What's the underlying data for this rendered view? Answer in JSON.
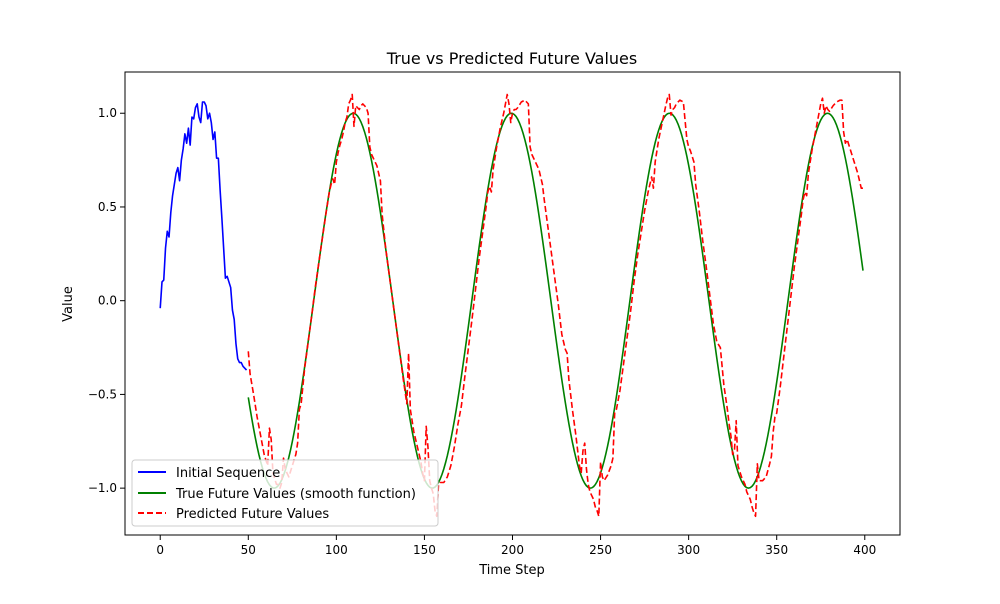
{
  "chart_data": {
    "type": "line",
    "title": "True vs Predicted Future Values",
    "xlabel": "Time Step",
    "ylabel": "Value",
    "xlim": [
      -20,
      420
    ],
    "ylim": [
      -1.25,
      1.22
    ],
    "x_ticks": [
      0,
      50,
      100,
      150,
      200,
      250,
      300,
      350,
      400
    ],
    "y_ticks": [
      1.0,
      0.5,
      0.0,
      -0.5,
      -1.0
    ],
    "x_tick_labels": [
      "0",
      "50",
      "100",
      "150",
      "200",
      "250",
      "300",
      "350",
      "400"
    ],
    "y_tick_labels": [
      "1.0",
      "0.5",
      "0.0",
      "−0.5",
      "−1.0"
    ],
    "grid": false,
    "legend_position": "lower-left",
    "series": [
      {
        "name": "Initial Sequence",
        "color": "#0000ff",
        "style": "solid",
        "points": [
          [
            0,
            -0.04
          ],
          [
            1,
            0.1
          ],
          [
            2,
            0.11
          ],
          [
            3,
            0.28
          ],
          [
            4,
            0.37
          ],
          [
            5,
            0.34
          ],
          [
            6,
            0.47
          ],
          [
            7,
            0.56
          ],
          [
            8,
            0.62
          ],
          [
            9,
            0.68
          ],
          [
            10,
            0.71
          ],
          [
            11,
            0.64
          ],
          [
            12,
            0.75
          ],
          [
            13,
            0.81
          ],
          [
            14,
            0.89
          ],
          [
            15,
            0.84
          ],
          [
            16,
            0.92
          ],
          [
            17,
            0.83
          ],
          [
            18,
            0.98
          ],
          [
            19,
            0.97
          ],
          [
            20,
            1.03
          ],
          [
            21,
            1.05
          ],
          [
            22,
            0.98
          ],
          [
            23,
            0.95
          ],
          [
            24,
            1.06
          ],
          [
            25,
            1.06
          ],
          [
            26,
            1.04
          ],
          [
            27,
            0.97
          ],
          [
            28,
            1.0
          ],
          [
            29,
            0.95
          ],
          [
            30,
            0.86
          ],
          [
            31,
            0.9
          ],
          [
            32,
            0.76
          ],
          [
            33,
            0.76
          ],
          [
            34,
            0.59
          ],
          [
            35,
            0.44
          ],
          [
            36,
            0.28
          ],
          [
            37,
            0.12
          ],
          [
            38,
            0.13
          ],
          [
            39,
            0.1
          ],
          [
            40,
            0.07
          ],
          [
            41,
            -0.05
          ],
          [
            42,
            -0.1
          ],
          [
            43,
            -0.23
          ],
          [
            44,
            -0.31
          ],
          [
            45,
            -0.33
          ],
          [
            46,
            -0.33
          ],
          [
            47,
            -0.35
          ],
          [
            48,
            -0.36
          ],
          [
            49,
            -0.37
          ]
        ]
      },
      {
        "name": "True Future Values (smooth function)",
        "color": "#008000",
        "style": "solid",
        "function": "sin(0.07*x - 6.1)",
        "x_range": [
          50,
          399
        ]
      },
      {
        "name": "Predicted Future Values",
        "color": "#ff0000",
        "style": "dashed",
        "points": [
          [
            50,
            -0.27
          ],
          [
            51,
            -0.39
          ],
          [
            53,
            -0.5
          ],
          [
            55,
            -0.62
          ],
          [
            57,
            -0.72
          ],
          [
            59,
            -0.82
          ],
          [
            61,
            -0.88
          ],
          [
            62,
            -0.68
          ],
          [
            63,
            -0.74
          ],
          [
            64,
            -0.92
          ],
          [
            66,
            -0.98
          ],
          [
            67,
            -0.98
          ],
          [
            68,
            -1.0
          ],
          [
            69,
            -0.97
          ],
          [
            70,
            -0.84
          ],
          [
            71,
            -0.9
          ],
          [
            73,
            -0.94
          ],
          [
            75,
            -0.88
          ],
          [
            77,
            -0.82
          ],
          [
            78,
            -0.76
          ],
          [
            79,
            -0.58
          ],
          [
            80,
            -0.55
          ],
          [
            82,
            -0.36
          ],
          [
            84,
            -0.22
          ],
          [
            86,
            -0.08
          ],
          [
            88,
            0.07
          ],
          [
            90,
            0.2
          ],
          [
            92,
            0.33
          ],
          [
            94,
            0.46
          ],
          [
            96,
            0.58
          ],
          [
            97,
            0.62
          ],
          [
            98,
            0.65
          ],
          [
            99,
            0.62
          ],
          [
            100,
            0.74
          ],
          [
            101,
            0.79
          ],
          [
            102,
            0.83
          ],
          [
            103,
            0.86
          ],
          [
            104,
            0.9
          ],
          [
            105,
            0.95
          ],
          [
            106,
            0.98
          ],
          [
            107,
            1.05
          ],
          [
            108,
            1.07
          ],
          [
            109,
            1.1
          ],
          [
            110,
            0.93
          ],
          [
            111,
            1.04
          ],
          [
            112,
            1.03
          ],
          [
            113,
            1.02
          ],
          [
            114,
            1.04
          ],
          [
            115,
            1.05
          ],
          [
            116,
            1.04
          ],
          [
            117,
            1.03
          ],
          [
            118,
            1.0
          ],
          [
            119,
            0.82
          ],
          [
            120,
            0.78
          ],
          [
            121,
            0.76
          ],
          [
            123,
            0.72
          ],
          [
            125,
            0.64
          ],
          [
            126,
            0.46
          ],
          [
            128,
            0.28
          ],
          [
            130,
            0.14
          ],
          [
            132,
            0.0
          ],
          [
            134,
            -0.14
          ],
          [
            136,
            -0.28
          ],
          [
            138,
            -0.42
          ],
          [
            140,
            -0.55
          ],
          [
            141,
            -0.28
          ],
          [
            142,
            -0.58
          ],
          [
            144,
            -0.7
          ],
          [
            146,
            -0.78
          ],
          [
            148,
            -0.86
          ],
          [
            149,
            -0.92
          ],
          [
            150,
            -0.96
          ],
          [
            151,
            -0.67
          ],
          [
            152,
            -0.78
          ],
          [
            153,
            -0.96
          ],
          [
            154,
            -1.0
          ],
          [
            155,
            -1.03
          ],
          [
            156,
            -1.12
          ],
          [
            157,
            -1.15
          ],
          [
            158,
            -0.98
          ],
          [
            159,
            -0.97
          ],
          [
            161,
            -0.97
          ],
          [
            163,
            -0.94
          ],
          [
            165,
            -0.88
          ],
          [
            167,
            -0.78
          ],
          [
            169,
            -0.66
          ],
          [
            171,
            -0.56
          ],
          [
            173,
            -0.4
          ],
          [
            175,
            -0.25
          ],
          [
            177,
            -0.1
          ],
          [
            179,
            0.06
          ],
          [
            181,
            0.22
          ],
          [
            183,
            0.36
          ],
          [
            185,
            0.5
          ],
          [
            186,
            0.58
          ],
          [
            187,
            0.61
          ],
          [
            188,
            0.58
          ],
          [
            189,
            0.7
          ],
          [
            191,
            0.82
          ],
          [
            193,
            0.92
          ],
          [
            195,
            1.0
          ],
          [
            196,
            1.05
          ],
          [
            197,
            1.1
          ],
          [
            198,
            1.05
          ],
          [
            199,
            0.95
          ],
          [
            200,
            1.0
          ],
          [
            201,
            1.02
          ],
          [
            202,
            1.02
          ],
          [
            203,
            1.03
          ],
          [
            205,
            1.06
          ],
          [
            207,
            1.07
          ],
          [
            208,
            1.06
          ],
          [
            209,
            1.05
          ],
          [
            210,
            0.82
          ],
          [
            211,
            0.78
          ],
          [
            213,
            0.74
          ],
          [
            215,
            0.7
          ],
          [
            217,
            0.62
          ],
          [
            218,
            0.54
          ],
          [
            220,
            0.4
          ],
          [
            222,
            0.26
          ],
          [
            224,
            0.12
          ],
          [
            226,
            -0.02
          ],
          [
            228,
            -0.18
          ],
          [
            230,
            -0.26
          ],
          [
            231,
            -0.28
          ],
          [
            232,
            -0.42
          ],
          [
            234,
            -0.58
          ],
          [
            236,
            -0.72
          ],
          [
            237,
            -0.8
          ],
          [
            238,
            -0.88
          ],
          [
            239,
            -0.92
          ],
          [
            240,
            -0.8
          ],
          [
            241,
            -0.76
          ],
          [
            242,
            -0.9
          ],
          [
            243,
            -0.98
          ],
          [
            244,
            -1.02
          ],
          [
            246,
            -1.06
          ],
          [
            247,
            -1.1
          ],
          [
            248,
            -1.12
          ],
          [
            249,
            -1.15
          ],
          [
            250,
            -0.86
          ],
          [
            251,
            -0.94
          ],
          [
            252,
            -0.96
          ],
          [
            254,
            -0.93
          ],
          [
            256,
            -0.88
          ],
          [
            257,
            -0.84
          ],
          [
            258,
            -0.6
          ],
          [
            259,
            -0.58
          ],
          [
            261,
            -0.48
          ],
          [
            263,
            -0.34
          ],
          [
            265,
            -0.2
          ],
          [
            267,
            -0.06
          ],
          [
            269,
            0.1
          ],
          [
            271,
            0.24
          ],
          [
            273,
            0.36
          ],
          [
            275,
            0.48
          ],
          [
            277,
            0.58
          ],
          [
            278,
            0.62
          ],
          [
            279,
            0.66
          ],
          [
            280,
            0.6
          ],
          [
            281,
            0.74
          ],
          [
            283,
            0.86
          ],
          [
            285,
            0.95
          ],
          [
            287,
            1.04
          ],
          [
            288,
            1.08
          ],
          [
            289,
            1.1
          ],
          [
            290,
            0.99
          ],
          [
            291,
            1.02
          ],
          [
            292,
            1.03
          ],
          [
            293,
            1.05
          ],
          [
            295,
            1.07
          ],
          [
            297,
            1.06
          ],
          [
            298,
            0.96
          ],
          [
            299,
            0.86
          ],
          [
            300,
            0.82
          ],
          [
            301,
            0.8
          ],
          [
            303,
            0.74
          ],
          [
            304,
            0.62
          ],
          [
            306,
            0.48
          ],
          [
            308,
            0.32
          ],
          [
            310,
            0.18
          ],
          [
            312,
            0.03
          ],
          [
            314,
            -0.12
          ],
          [
            316,
            -0.22
          ],
          [
            318,
            -0.25
          ],
          [
            320,
            -0.45
          ],
          [
            322,
            -0.58
          ],
          [
            323,
            -0.66
          ],
          [
            324,
            -0.72
          ],
          [
            325,
            -0.82
          ],
          [
            326,
            -0.8
          ],
          [
            327,
            -0.64
          ],
          [
            328,
            -0.88
          ],
          [
            330,
            -0.94
          ],
          [
            332,
            -0.98
          ],
          [
            333,
            -1.02
          ],
          [
            335,
            -1.06
          ],
          [
            336,
            -1.1
          ],
          [
            337,
            -1.13
          ],
          [
            338,
            -1.15
          ],
          [
            339,
            -0.87
          ],
          [
            340,
            -0.96
          ],
          [
            342,
            -0.96
          ],
          [
            344,
            -0.94
          ],
          [
            346,
            -0.87
          ],
          [
            347,
            -0.83
          ],
          [
            348,
            -0.7
          ],
          [
            349,
            -0.62
          ],
          [
            350,
            -0.6
          ],
          [
            352,
            -0.46
          ],
          [
            354,
            -0.3
          ],
          [
            356,
            -0.14
          ],
          [
            358,
            0.02
          ],
          [
            360,
            0.18
          ],
          [
            362,
            0.32
          ],
          [
            364,
            0.46
          ],
          [
            365,
            0.54
          ],
          [
            366,
            0.58
          ],
          [
            367,
            0.56
          ],
          [
            368,
            0.68
          ],
          [
            370,
            0.8
          ],
          [
            372,
            0.9
          ],
          [
            373,
            0.95
          ],
          [
            374,
            1.0
          ],
          [
            375,
            1.05
          ],
          [
            376,
            1.08
          ],
          [
            377,
            1.0
          ],
          [
            378,
            1.04
          ],
          [
            379,
            1.02
          ],
          [
            380,
            1.01
          ],
          [
            382,
            1.04
          ],
          [
            384,
            1.06
          ],
          [
            386,
            1.07
          ],
          [
            387,
            1.07
          ],
          [
            388,
            0.9
          ],
          [
            389,
            0.84
          ],
          [
            390,
            0.86
          ],
          [
            392,
            0.8
          ],
          [
            394,
            0.74
          ],
          [
            396,
            0.68
          ],
          [
            398,
            0.6
          ],
          [
            399,
            0.6
          ]
        ]
      }
    ]
  }
}
